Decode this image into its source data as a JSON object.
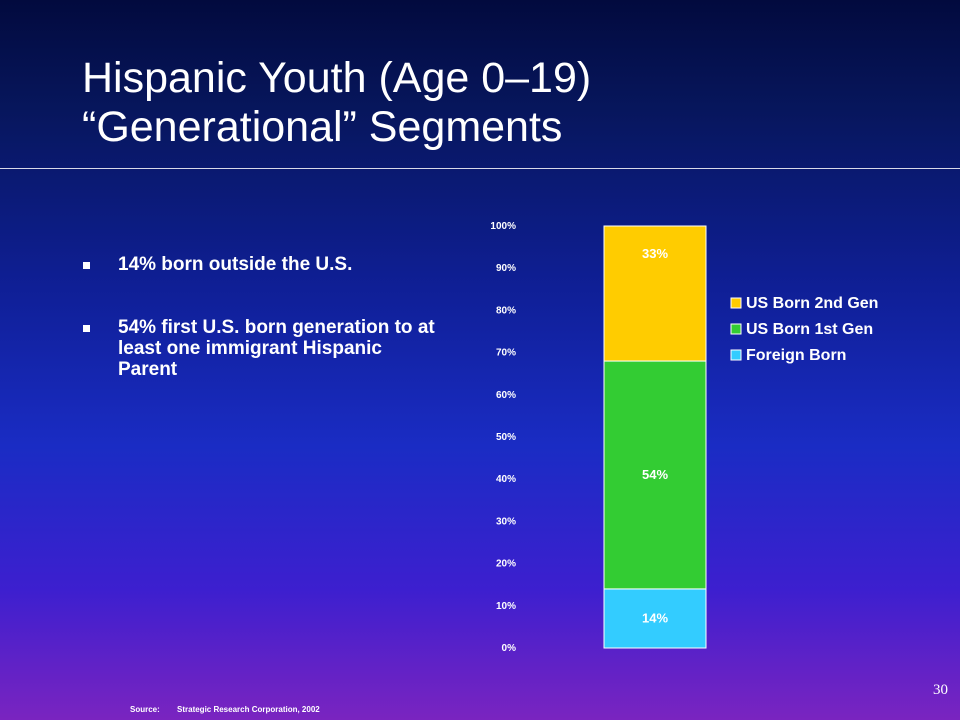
{
  "slide": {
    "title_line1": "Hispanic Youth (Age 0–19)",
    "title_line2": "“Generational” Segments",
    "bullets": [
      "14% born outside the U.S.",
      "54% first U.S. born generation to at least one immigrant Hispanic Parent"
    ],
    "source_label": "Source:",
    "source_text": "Strategic Research Corporation, 2002",
    "page_number": "30"
  },
  "chart_data": {
    "type": "bar",
    "stacked": true,
    "percent_axis": true,
    "yticks": [
      "0%",
      "10%",
      "20%",
      "30%",
      "40%",
      "50%",
      "60%",
      "70%",
      "80%",
      "90%",
      "100%"
    ],
    "ylim": [
      0,
      100
    ],
    "series": [
      {
        "name": "Foreign Born",
        "value": 14,
        "label": "14%",
        "color": "#33ccff"
      },
      {
        "name": "US Born 1st Gen",
        "value": 54,
        "label": "54%",
        "color": "#33cc33"
      },
      {
        "name": "US Born 2nd Gen",
        "value": 33,
        "label": "33%",
        "color": "#ffcc00"
      }
    ],
    "legend_order": [
      "US Born 2nd Gen",
      "US Born 1st Gen",
      "Foreign Born"
    ],
    "legend_position": "right"
  }
}
